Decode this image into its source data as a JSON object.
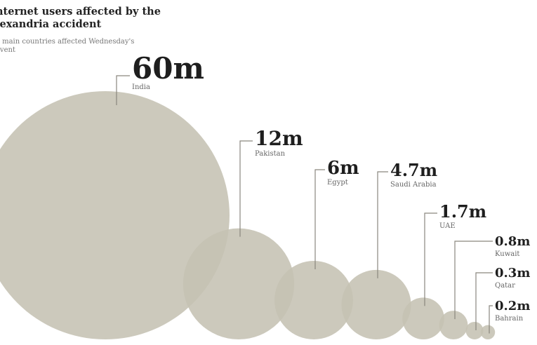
{
  "title": "nternet users affected by the lexandria accident",
  "subtitle": "e main countries affected Wednesday's event",
  "colors": {
    "bubble": "#c5c1b3",
    "leader": "#8a877e"
  },
  "chart_data": {
    "type": "bubble",
    "title": "nternet users affected by the lexandria accident",
    "subtitle": "e main countries affected Wednesday's event",
    "unit": "m",
    "categories": [
      "India",
      "Pakistan",
      "Egypt",
      "Saudi Arabia",
      "UAE",
      "Kuwait",
      "Qatar",
      "Bahrain"
    ],
    "labels": [
      "60m",
      "12m",
      "6m",
      "4.7m",
      "1.7m",
      "0.8m",
      "0.3m",
      "0.2m"
    ],
    "values": [
      60,
      12,
      6,
      4.7,
      1.7,
      0.8,
      0.3,
      0.2
    ]
  }
}
